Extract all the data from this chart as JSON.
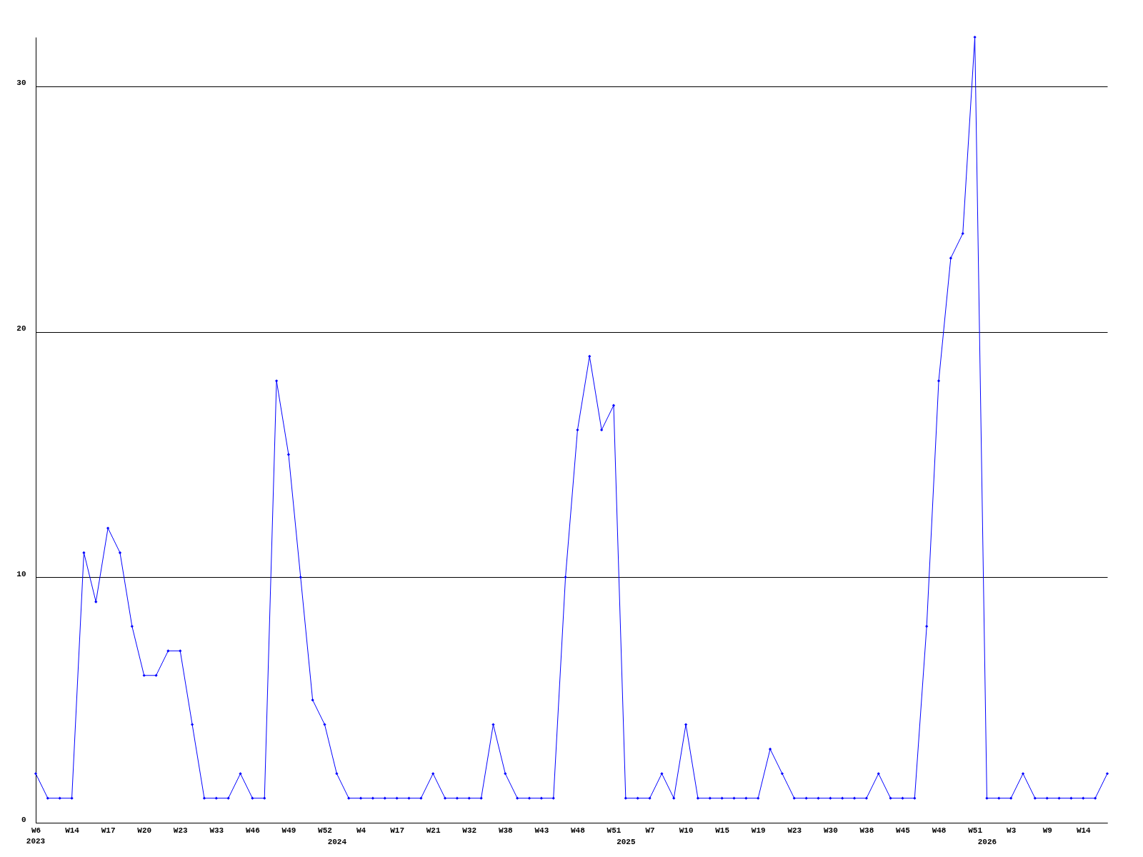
{
  "chart_data": {
    "type": "line",
    "categories": [
      "W6",
      null,
      null,
      "W14",
      null,
      null,
      "W17",
      null,
      null,
      "W20",
      null,
      null,
      "W23",
      null,
      null,
      "W33",
      null,
      null,
      "W46",
      null,
      null,
      "W49",
      null,
      null,
      "W52",
      "2024",
      null,
      "W4",
      null,
      null,
      "W17",
      null,
      null,
      "W21",
      null,
      null,
      "W32",
      null,
      null,
      "W38",
      null,
      null,
      "W43",
      null,
      null,
      "W48",
      null,
      null,
      "W51",
      "2025",
      null,
      "W7",
      null,
      null,
      "W10",
      null,
      null,
      "W15",
      null,
      null,
      "W19",
      null,
      null,
      "W23",
      null,
      null,
      "W30",
      null,
      null,
      "W38",
      null,
      null,
      "W45",
      null,
      null,
      "W48",
      null,
      null,
      "W51",
      "2026",
      null,
      "W3",
      null,
      null,
      "W9",
      null,
      null,
      "W14",
      null,
      null
    ],
    "series": [
      {
        "color": "#0000ff",
        "values": [
          2,
          1,
          1,
          1,
          11,
          9,
          12,
          11,
          8,
          6,
          6,
          7,
          7,
          4,
          1,
          1,
          1,
          2,
          1,
          1,
          18,
          15,
          10,
          5,
          4,
          2,
          1,
          1,
          1,
          1,
          1,
          1,
          1,
          2,
          1,
          1,
          1,
          1,
          4,
          2,
          1,
          1,
          1,
          1,
          10,
          16,
          19,
          16,
          17,
          1,
          1,
          1,
          2,
          1,
          4,
          1,
          1,
          1,
          1,
          1,
          1,
          3,
          2,
          1,
          1,
          1,
          1,
          1,
          1,
          1,
          2,
          1,
          1,
          1,
          8,
          18,
          23,
          24,
          32,
          1,
          1,
          1,
          2,
          1,
          1,
          1,
          1,
          1,
          1,
          2
        ]
      }
    ],
    "annotations": [
      "2023"
    ],
    "ylim": [
      0,
      32
    ],
    "yticks": [
      0,
      10,
      20,
      30
    ],
    "grid": "y",
    "marker": "diamond",
    "line_style": "solid"
  }
}
